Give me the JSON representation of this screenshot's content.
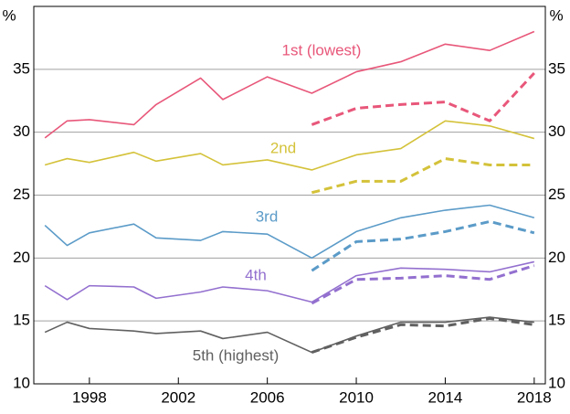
{
  "chart_data": {
    "type": "line",
    "y_label": "%",
    "x": [
      1996,
      1997,
      1998,
      2000,
      2001,
      2003,
      2004,
      2006,
      2008,
      2010,
      2012,
      2014,
      2016,
      2018
    ],
    "xlim": [
      1995.5,
      2018.5
    ],
    "xticks": [
      1998,
      2002,
      2006,
      2010,
      2014,
      2018
    ],
    "ylim": [
      10,
      40
    ],
    "yticks": [
      10,
      15,
      20,
      25,
      30,
      35
    ],
    "grid": true,
    "series": [
      {
        "name": "1st (lowest)",
        "color": "#e8577a",
        "values": [
          29.55,
          30.9,
          31.0,
          30.6,
          32.2,
          34.3,
          32.6,
          34.4,
          33.1,
          34.8,
          35.6,
          37.0,
          36.5,
          38.0
        ]
      },
      {
        "color": "#e8577a",
        "dashed": true,
        "values": [
          null,
          null,
          null,
          null,
          null,
          null,
          null,
          null,
          30.6,
          31.9,
          32.2,
          32.4,
          30.9,
          34.7
        ]
      },
      {
        "name": "2nd",
        "color": "#d4c23a",
        "values": [
          27.4,
          27.9,
          27.6,
          28.4,
          27.7,
          28.3,
          27.4,
          27.8,
          27.0,
          28.2,
          28.7,
          30.9,
          30.5,
          29.5
        ]
      },
      {
        "color": "#d4c23a",
        "dashed": true,
        "values": [
          null,
          null,
          null,
          null,
          null,
          null,
          null,
          null,
          25.2,
          26.1,
          26.1,
          27.9,
          27.4,
          27.4
        ]
      },
      {
        "name": "3rd",
        "color": "#5b9bc8",
        "values": [
          22.6,
          21.0,
          22.0,
          22.7,
          21.6,
          21.4,
          22.1,
          21.9,
          20.0,
          22.1,
          23.2,
          23.8,
          24.2,
          23.2
        ]
      },
      {
        "color": "#5b9bc8",
        "dashed": true,
        "values": [
          null,
          null,
          null,
          null,
          null,
          null,
          null,
          null,
          19.0,
          21.3,
          21.5,
          22.1,
          22.9,
          22.0
        ]
      },
      {
        "name": "4th",
        "color": "#9370cf",
        "values": [
          17.8,
          16.7,
          17.8,
          17.7,
          16.8,
          17.3,
          17.7,
          17.4,
          16.5,
          18.6,
          19.2,
          19.1,
          18.9,
          19.7
        ]
      },
      {
        "color": "#9370cf",
        "dashed": true,
        "values": [
          null,
          null,
          null,
          null,
          null,
          null,
          null,
          null,
          16.4,
          18.3,
          18.4,
          18.6,
          18.3,
          19.4
        ]
      },
      {
        "name": "5th (highest)",
        "color": "#606060",
        "values": [
          14.1,
          14.9,
          14.4,
          14.2,
          14.0,
          14.2,
          13.6,
          14.1,
          12.5,
          13.8,
          14.9,
          14.9,
          15.3,
          14.9
        ]
      },
      {
        "color": "#606060",
        "dashed": true,
        "values": [
          null,
          null,
          null,
          null,
          null,
          null,
          null,
          null,
          12.5,
          13.7,
          14.7,
          14.6,
          15.2,
          14.7
        ]
      }
    ]
  }
}
